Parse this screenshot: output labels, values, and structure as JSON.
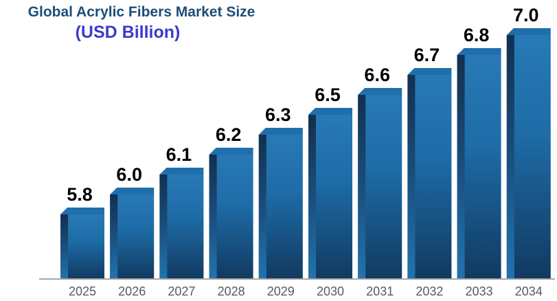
{
  "title": {
    "line1": "Global Acrylic Fibers Market Size",
    "line2": "(USD Billion)"
  },
  "colors": {
    "title_line1": "#1C4E79",
    "title_line2": "#3B3BCB",
    "bar_front_top": "#2879B5",
    "bar_front_mid": "#1E6CA8",
    "bar_front_bottom": "#113A60",
    "bar_side_top": "#142F4E",
    "bar_side_mid": "#1A4E7C",
    "bar_side_bottom": "#2273AF",
    "bar_top_face": "#1F6FAD",
    "axis_line": "#A6A6A6",
    "value_label": "#000000",
    "year_label": "#595959",
    "background": "#FFFFFF"
  },
  "chart_data": {
    "type": "bar",
    "title": "Global Acrylic Fibers Market Size",
    "subtitle": "(USD Billion)",
    "xlabel": "",
    "ylabel": "",
    "categories": [
      "2025",
      "2026",
      "2027",
      "2028",
      "2029",
      "2030",
      "2031",
      "2032",
      "2033",
      "2034"
    ],
    "values": [
      5.8,
      6.0,
      6.1,
      6.2,
      6.3,
      6.5,
      6.6,
      6.7,
      6.8,
      7.0
    ],
    "value_labels": [
      "5.8",
      "6.0",
      "6.1",
      "6.2",
      "6.3",
      "6.5",
      "6.6",
      "6.7",
      "6.8",
      "7.0"
    ],
    "series_name": "Market Size (USD Billion)",
    "bar_style": "3d-column",
    "grid": "off",
    "legend": "none",
    "y_axis_visible": false,
    "x_axis_visible": true,
    "data_labels_position": "above-bar",
    "visual_note": "bar heights increase in uniform visual steps"
  }
}
